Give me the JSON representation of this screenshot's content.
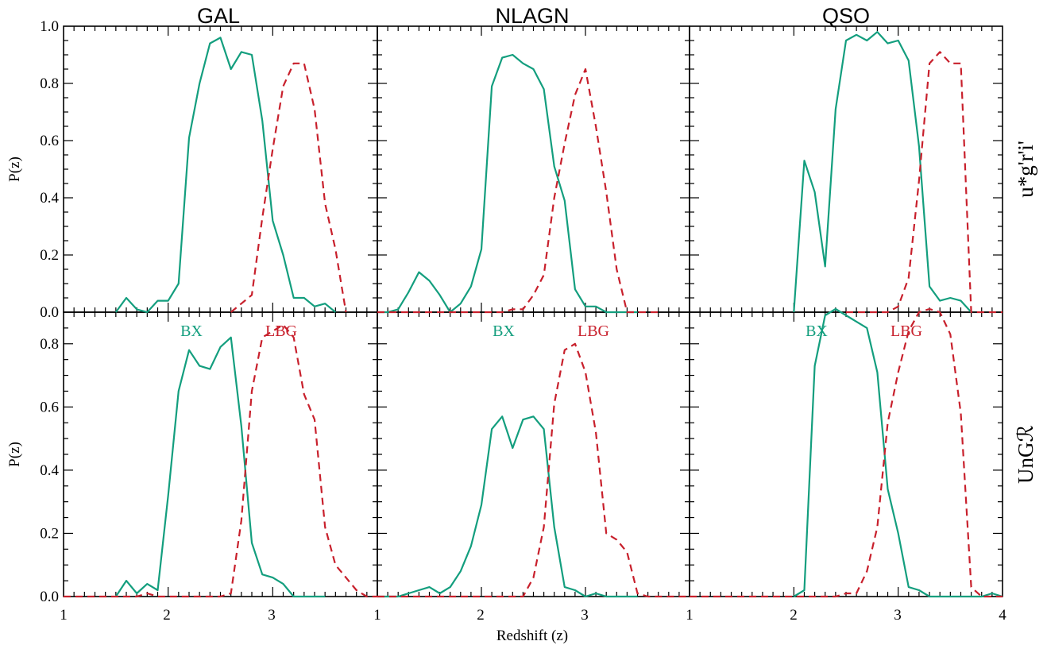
{
  "chart_data": {
    "type": "line",
    "xlabel": "Redshift (z)",
    "ylabel": "P(z)",
    "xlim": [
      1,
      4
    ],
    "ylim": [
      0,
      1.0
    ],
    "column_titles": [
      "GAL",
      "NLAGN",
      "QSO"
    ],
    "row_labels": [
      "u*g'r'i'",
      "UnGℛ"
    ],
    "annotations": {
      "bx": "BX",
      "lbg": "LBG"
    },
    "colors": {
      "bx": "#139e7e",
      "lbg": "#c8202c"
    },
    "x_tick_labels": [
      "1",
      "2",
      "3",
      "1",
      "2",
      "3",
      "1",
      "2",
      "3",
      "4"
    ],
    "y_tick_labels_top": [
      "0.0",
      "0.2",
      "0.4",
      "0.6",
      "0.8",
      "1.0"
    ],
    "y_tick_labels_bottom": [
      "0.0",
      "0.2",
      "0.4",
      "0.6",
      "0.8"
    ],
    "panels": [
      {
        "row": 0,
        "col": 0,
        "series": [
          {
            "name": "BX",
            "style": "solid",
            "x": [
              1.5,
              1.6,
              1.7,
              1.8,
              1.9,
              2.0,
              2.1,
              2.2,
              2.3,
              2.4,
              2.5,
              2.6,
              2.7,
              2.8,
              2.9,
              3.0,
              3.1,
              3.2,
              3.3,
              3.4,
              3.5,
              3.6
            ],
            "y": [
              0.0,
              0.05,
              0.01,
              0.0,
              0.04,
              0.04,
              0.1,
              0.61,
              0.8,
              0.94,
              0.96,
              0.85,
              0.91,
              0.9,
              0.67,
              0.32,
              0.2,
              0.05,
              0.05,
              0.02,
              0.03,
              0.0
            ]
          },
          {
            "name": "LBG",
            "style": "dashed",
            "x": [
              2.6,
              2.7,
              2.8,
              2.9,
              3.0,
              3.1,
              3.2,
              3.3,
              3.4,
              3.5,
              3.6,
              3.7
            ],
            "y": [
              0.0,
              0.03,
              0.06,
              0.33,
              0.57,
              0.79,
              0.87,
              0.87,
              0.71,
              0.38,
              0.22,
              0.0
            ]
          }
        ]
      },
      {
        "row": 0,
        "col": 1,
        "series": [
          {
            "name": "BX",
            "style": "solid",
            "x": [
              1.0,
              1.1,
              1.2,
              1.3,
              1.4,
              1.5,
              1.6,
              1.7,
              1.8,
              1.9,
              2.0,
              2.1,
              2.2,
              2.3,
              2.4,
              2.5,
              2.6,
              2.7,
              2.8,
              2.9,
              3.0,
              3.1,
              3.2,
              3.3,
              3.4,
              3.5
            ],
            "y": [
              0.0,
              0.0,
              0.01,
              0.07,
              0.14,
              0.11,
              0.06,
              0.0,
              0.03,
              0.09,
              0.22,
              0.79,
              0.89,
              0.9,
              0.87,
              0.85,
              0.78,
              0.51,
              0.39,
              0.08,
              0.02,
              0.02,
              0.0,
              0.0,
              0.0,
              0.0
            ]
          },
          {
            "name": "LBG",
            "style": "dashed",
            "x": [
              1.0,
              1.3,
              1.4,
              1.5,
              2.2,
              2.3,
              2.4,
              2.5,
              2.6,
              2.7,
              2.8,
              2.9,
              3.0,
              3.1,
              3.2,
              3.3,
              3.4,
              3.5,
              3.6,
              3.7
            ],
            "y": [
              0.0,
              0.0,
              0.0,
              0.0,
              0.0,
              0.01,
              0.01,
              0.06,
              0.13,
              0.4,
              0.59,
              0.76,
              0.85,
              0.65,
              0.42,
              0.15,
              0.0,
              0.0,
              0.0,
              0.0
            ]
          }
        ]
      },
      {
        "row": 0,
        "col": 2,
        "series": [
          {
            "name": "BX",
            "style": "solid",
            "x": [
              2.0,
              2.1,
              2.2,
              2.3,
              2.4,
              2.5,
              2.6,
              2.7,
              2.8,
              2.9,
              3.0,
              3.1,
              3.2,
              3.3,
              3.4,
              3.5,
              3.6,
              3.7
            ],
            "y": [
              0.0,
              0.53,
              0.42,
              0.16,
              0.71,
              0.95,
              0.97,
              0.95,
              0.98,
              0.94,
              0.95,
              0.88,
              0.58,
              0.09,
              0.04,
              0.05,
              0.04,
              0.0
            ]
          },
          {
            "name": "LBG",
            "style": "dashed",
            "x": [
              2.5,
              2.6,
              2.7,
              2.8,
              2.9,
              3.0,
              3.1,
              3.2,
              3.3,
              3.4,
              3.5,
              3.6,
              3.7,
              3.8,
              3.9,
              4.0
            ],
            "y": [
              0.0,
              0.0,
              0.0,
              0.0,
              0.0,
              0.02,
              0.12,
              0.46,
              0.87,
              0.91,
              0.87,
              0.87,
              0.0,
              0.0,
              0.0,
              0.0
            ]
          }
        ]
      },
      {
        "row": 1,
        "col": 0,
        "series": [
          {
            "name": "BX",
            "style": "solid",
            "x": [
              1.5,
              1.6,
              1.7,
              1.8,
              1.9,
              2.0,
              2.1,
              2.2,
              2.3,
              2.4,
              2.5,
              2.6,
              2.7,
              2.8,
              2.9,
              3.0,
              3.1,
              3.2,
              3.3,
              3.4,
              3.5
            ],
            "y": [
              0.0,
              0.05,
              0.01,
              0.04,
              0.02,
              0.32,
              0.65,
              0.78,
              0.73,
              0.72,
              0.79,
              0.82,
              0.54,
              0.17,
              0.07,
              0.06,
              0.04,
              0.0,
              0.0,
              0.0,
              0.0
            ]
          },
          {
            "name": "LBG",
            "style": "dashed",
            "x": [
              1.0,
              1.5,
              1.6,
              1.7,
              1.8,
              1.9,
              2.5,
              2.6,
              2.7,
              2.8,
              2.9,
              3.0,
              3.1,
              3.2,
              3.3,
              3.4,
              3.5,
              3.6,
              3.7,
              3.8,
              3.9,
              4.0
            ],
            "y": [
              0.0,
              0.0,
              0.0,
              0.0,
              0.01,
              0.0,
              0.0,
              0.01,
              0.24,
              0.65,
              0.82,
              0.84,
              0.86,
              0.82,
              0.64,
              0.56,
              0.22,
              0.1,
              0.06,
              0.02,
              0.0,
              0.0
            ]
          }
        ]
      },
      {
        "row": 1,
        "col": 1,
        "series": [
          {
            "name": "BX",
            "style": "solid",
            "x": [
              1.0,
              1.1,
              1.2,
              1.3,
              1.4,
              1.5,
              1.6,
              1.7,
              1.8,
              1.9,
              2.0,
              2.1,
              2.2,
              2.3,
              2.4,
              2.5,
              2.6,
              2.7,
              2.8,
              2.9,
              3.0,
              3.1,
              3.2,
              3.3,
              3.4,
              3.5
            ],
            "y": [
              0.0,
              0.0,
              0.0,
              0.01,
              0.02,
              0.03,
              0.01,
              0.03,
              0.08,
              0.16,
              0.29,
              0.53,
              0.57,
              0.47,
              0.56,
              0.57,
              0.53,
              0.22,
              0.03,
              0.02,
              0.0,
              0.01,
              0.0,
              0.0,
              0.0,
              0.0
            ]
          },
          {
            "name": "LBG",
            "style": "dashed",
            "x": [
              1.0,
              1.2,
              1.3,
              1.4,
              1.5,
              2.2,
              2.3,
              2.4,
              2.5,
              2.6,
              2.7,
              2.8,
              2.9,
              3.0,
              3.1,
              3.2,
              3.3,
              3.4,
              3.5,
              3.6,
              3.7,
              3.8,
              3.9,
              4.0
            ],
            "y": [
              0.0,
              0.0,
              0.0,
              0.0,
              0.0,
              0.0,
              0.0,
              0.0,
              0.06,
              0.22,
              0.61,
              0.78,
              0.8,
              0.71,
              0.52,
              0.2,
              0.18,
              0.14,
              0.01,
              0.0,
              0.0,
              0.0,
              0.0,
              0.0
            ]
          }
        ]
      },
      {
        "row": 1,
        "col": 2,
        "series": [
          {
            "name": "BX",
            "style": "solid",
            "x": [
              2.0,
              2.1,
              2.2,
              2.3,
              2.4,
              2.5,
              2.6,
              2.7,
              2.8,
              2.9,
              3.0,
              3.1,
              3.2,
              3.3,
              3.4,
              3.5,
              3.6,
              3.7,
              3.8,
              3.9,
              4.0
            ],
            "y": [
              0.0,
              0.02,
              0.73,
              0.89,
              0.91,
              0.89,
              0.87,
              0.85,
              0.71,
              0.34,
              0.2,
              0.03,
              0.02,
              0.0,
              0.0,
              0.0,
              0.0,
              0.0,
              0.0,
              0.01,
              0.0
            ]
          },
          {
            "name": "LBG",
            "style": "dashed",
            "x": [
              1.0,
              1.5,
              2.0,
              2.3,
              2.4,
              2.5,
              2.6,
              2.7,
              2.8,
              2.9,
              3.0,
              3.1,
              3.2,
              3.3,
              3.4,
              3.5,
              3.6,
              3.7,
              3.8,
              3.9,
              4.0
            ],
            "y": [
              0.0,
              0.0,
              0.0,
              0.0,
              0.0,
              0.01,
              0.01,
              0.08,
              0.22,
              0.55,
              0.71,
              0.84,
              0.9,
              0.91,
              0.9,
              0.83,
              0.58,
              0.03,
              0.0,
              0.0,
              0.0
            ]
          }
        ]
      }
    ]
  }
}
